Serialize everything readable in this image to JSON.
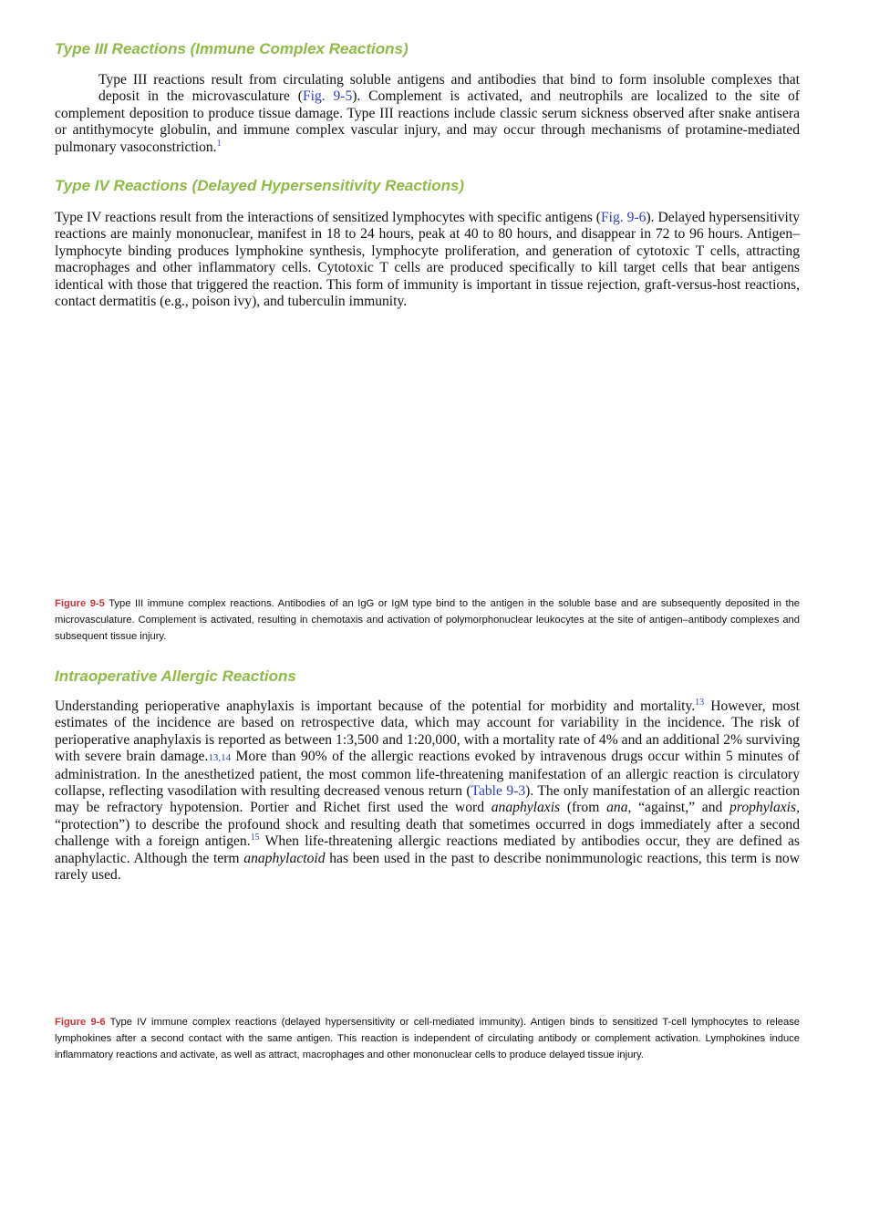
{
  "sections": [
    {
      "heading": "Type III Reactions (Immune Complex Reactions)",
      "paragraph": [
        "Type III reactions result from circulating soluble antigens and antibodies that bind to form insoluble complexes that deposit in the microvasculature (",
        "Fig. 9-5",
        "). Complement is activated, and neutrophils are localized to the site of complement deposition to produce tissue damage. Type III reactions include classic serum sickness observed after snake antisera or antithymocyte globulin, and immune complex vascular injury, and may occur through mechanisms of protamine-mediated pulmonary vasoconstriction.",
        "1"
      ]
    },
    {
      "heading": "Type IV Reactions (Delayed Hypersensitivity Reactions)",
      "paragraph": [
        "Type IV reactions result from the interactions of sensitized lymphocytes with specific antigens (",
        "Fig. 9-6",
        "). Delayed hypersensitivity reactions are mainly mononuclear, manifest in 18 to 24 hours, peak at 40 to 80 hours, and disappear in 72 to 96 hours. Antigen–lymphocyte binding produces lymphokine synthesis, lymphocyte proliferation, and generation of cytotoxic T cells, attracting macrophages and other inflammatory cells. Cytotoxic T cells are produced specifically to kill target cells that bear antigens identical with those that triggered the reaction. This form of immunity is important in tissue rejection, graft-versus-host reactions, contact dermatitis (e.g., poison ivy), and tuberculin immunity."
      ]
    },
    {
      "heading": "Intraoperative Allergic Reactions",
      "paragraph": [
        "Understanding perioperative anaphylaxis is important because of the potential for morbidity and mortality.",
        "13",
        " However, most estimates of the incidence are based on retrospective data, which may account for variability in the incidence. The risk of perioperative anaphylaxis is reported as between 1:3,500 and 1:20,000, with a mortality rate of 4% and an additional 2% surviving with severe brain damage.",
        "13,14",
        " More than 90% of the allergic reactions evoked by intravenous drugs occur within 5 minutes of administration. In the anesthetized patient, the most common life-threatening manifestation of an allergic reaction is circulatory collapse, reflecting vasodilation with resulting decreased venous return (",
        "Table 9-3",
        "). The only manifestation of an allergic reaction may be refractory hypotension. Portier and Richet first used the word ",
        "anaphylaxis",
        " (from ",
        "ana,",
        " “against,” and ",
        "prophylaxis,",
        " “protection”) to describe the profound shock and resulting death that sometimes occurred in dogs immediately after a second challenge with a foreign antigen.",
        "15",
        " When life-threatening allergic reactions mediated by antibodies occur, they are defined as anaphylactic. Although the term ",
        "anaphylactoid",
        " has been used in the past to describe nonimmunologic reactions, this term is now rarely used."
      ]
    }
  ],
  "figures": [
    {
      "label": "Figure 9-5",
      "caption": "Type III immune complex reactions. Antibodies of an IgG or IgM type bind to the antigen in the soluble base and are subsequently deposited in the microvasculature. Complement is activated, resulting in chemotaxis and activation of polymorphonuclear leukocytes at the site of antigen–antibody complexes and subsequent tissue injury."
    },
    {
      "label": "Figure 9-6",
      "caption": "Type IV immune complex reactions (delayed hypersensitivity or cell-mediated immunity). Antigen binds to sensitized T-cell lymphocytes to release lymphokines after a second contact with the same antigen. This reaction is independent of circulating antibody or complement activation. Lymphokines induce inflammatory reactions and activate, as well as attract, macrophages and other mononuclear cells to produce delayed tissue injury."
    }
  ]
}
